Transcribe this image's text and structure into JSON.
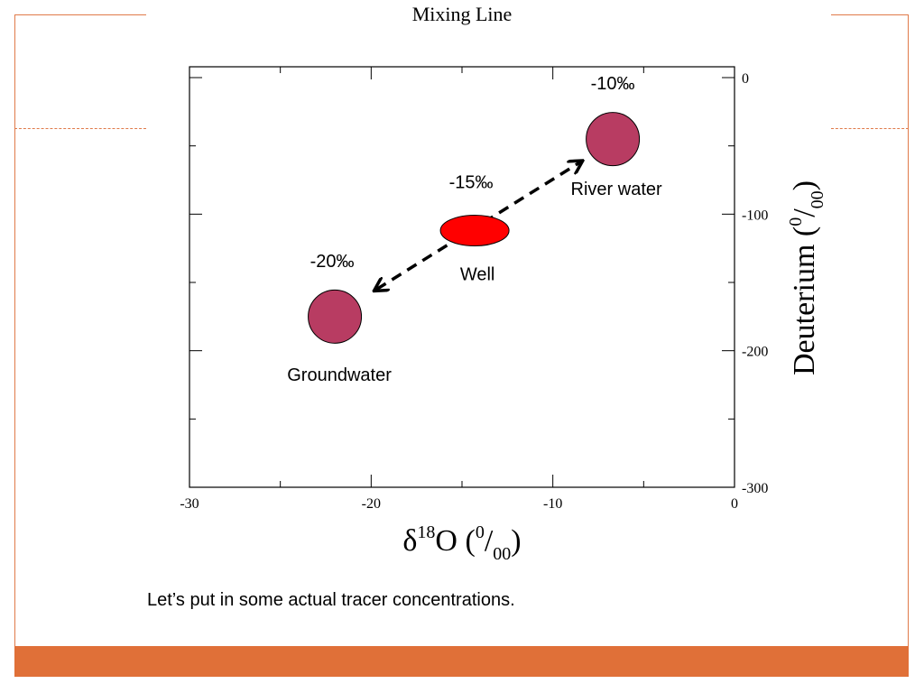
{
  "caption": "Let’s put in some actual tracer concentrations.",
  "colors": {
    "accent": "#e07a4a",
    "bottom_bar": "#e07038",
    "endmember": "#b83c62",
    "well": "#ff0000"
  },
  "chart_data": {
    "type": "scatter",
    "title": "Mixing Line",
    "xlabel": "δ18O (0/00)",
    "ylabel": "Deuterium (0/00)",
    "xlim": [
      -30,
      0
    ],
    "ylim": [
      -300,
      0
    ],
    "x_ticks": [
      "-30",
      "-20",
      "-10",
      "0"
    ],
    "y_ticks": [
      "0",
      "-100",
      "-200",
      "-300"
    ],
    "grid": false,
    "points": [
      {
        "name": "River water",
        "x": -6.7,
        "y": -45,
        "concentration": "-10‰",
        "marker": "circle"
      },
      {
        "name": "Well",
        "x": -14.3,
        "y": -112,
        "concentration": "-15‰",
        "marker": "ellipse"
      },
      {
        "name": "Groundwater",
        "x": -22,
        "y": -175,
        "concentration": "-20‰",
        "marker": "circle"
      }
    ],
    "mixing_line": {
      "from": [
        -19.7,
        -155
      ],
      "to": [
        -8.5,
        -62
      ],
      "style": "dashed",
      "arrows": "both"
    }
  }
}
